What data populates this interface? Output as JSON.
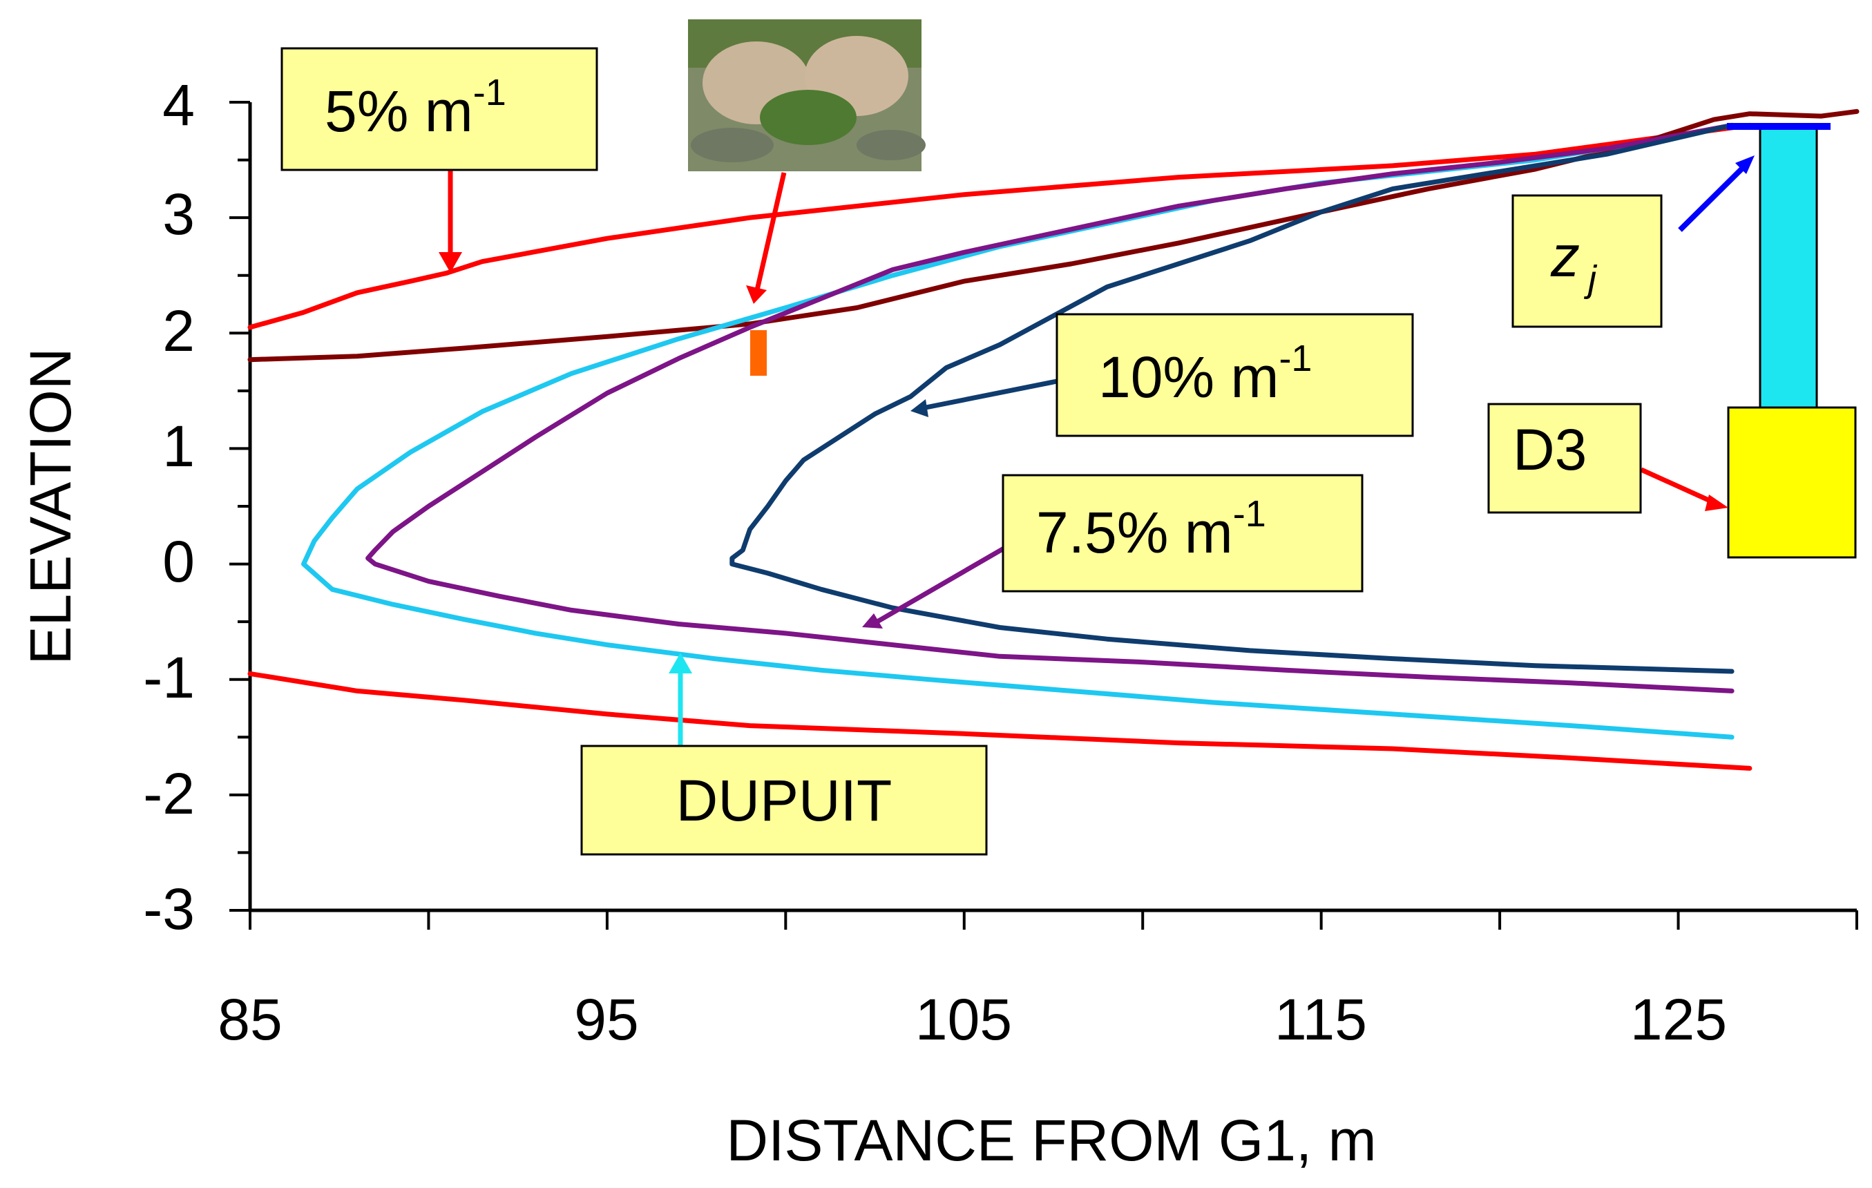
{
  "chart_data": {
    "type": "line",
    "xlabel": "DISTANCE FROM G1, m",
    "ylabel": "ELEVATION",
    "xlim": [
      85,
      130
    ],
    "ylim": [
      -3,
      4
    ],
    "x_ticks": [
      85,
      95,
      105,
      115,
      125
    ],
    "y_ticks": [
      4,
      3,
      2,
      1,
      0,
      -1,
      -2,
      -3
    ],
    "grid": false,
    "colors": {
      "red": "#ff0000",
      "dark_red": "#800000",
      "cyan": "#1ec8f0",
      "purple": "#7d1487",
      "navy": "#0f3c6e",
      "well": "#1ee6f0",
      "box": "#ffff99",
      "d3": "#ffff00",
      "water_level": "#0000ff",
      "orange": "#ff6600"
    },
    "series": [
      {
        "color_key": "red",
        "x": [
          85,
          86.5,
          88,
          89.5,
          90.5,
          91.5,
          95,
          99,
          105,
          111,
          117,
          121,
          127
        ],
        "y": [
          2.05,
          2.18,
          2.35,
          2.45,
          2.52,
          2.62,
          2.82,
          3.0,
          3.2,
          3.35,
          3.45,
          3.55,
          3.8
        ]
      },
      {
        "color_key": "red",
        "x": [
          85,
          88,
          91,
          95,
          99,
          105,
          111,
          117,
          122,
          127
        ],
        "y": [
          -0.95,
          -1.1,
          -1.18,
          -1.3,
          -1.4,
          -1.47,
          -1.55,
          -1.6,
          -1.68,
          -1.77
        ]
      },
      {
        "color_key": "dark_red",
        "x": [
          85,
          88,
          91,
          95,
          99,
          102,
          105,
          108,
          111,
          115,
          118,
          121,
          124,
          126,
          127,
          129,
          130
        ],
        "y": [
          1.77,
          1.8,
          1.87,
          1.97,
          2.08,
          2.22,
          2.45,
          2.6,
          2.78,
          3.05,
          3.25,
          3.42,
          3.65,
          3.85,
          3.9,
          3.88,
          3.92
        ]
      },
      {
        "color_key": "cyan",
        "x": [
          126.5,
          124,
          121,
          118,
          115,
          112,
          109,
          106,
          103,
          100,
          97,
          94,
          91.5,
          89.5,
          88,
          87.3,
          86.8,
          86.5,
          87.3,
          89,
          91,
          93,
          95,
          98,
          101,
          104,
          108,
          112,
          117,
          122,
          126.5
        ],
        "y": [
          3.8,
          3.65,
          3.5,
          3.4,
          3.3,
          3.15,
          2.95,
          2.75,
          2.5,
          2.22,
          1.95,
          1.65,
          1.32,
          0.97,
          0.65,
          0.4,
          0.2,
          0.0,
          -0.22,
          -0.35,
          -0.48,
          -0.6,
          -0.7,
          -0.82,
          -0.92,
          -1.0,
          -1.1,
          -1.2,
          -1.3,
          -1.4,
          -1.5
        ]
      },
      {
        "color_key": "purple",
        "x": [
          126.5,
          123,
          120,
          117,
          114,
          111,
          108,
          105,
          103,
          101,
          99,
          97,
          95,
          93,
          91.5,
          90,
          89,
          88.5,
          88.3,
          88.5,
          90,
          92,
          94,
          97,
          100,
          103,
          106,
          110,
          114,
          118,
          122,
          126.5
        ],
        "y": [
          3.8,
          3.6,
          3.48,
          3.38,
          3.25,
          3.1,
          2.9,
          2.7,
          2.55,
          2.3,
          2.05,
          1.78,
          1.48,
          1.1,
          0.8,
          0.5,
          0.28,
          0.12,
          0.05,
          0.0,
          -0.15,
          -0.28,
          -0.4,
          -0.52,
          -0.6,
          -0.7,
          -0.8,
          -0.85,
          -0.92,
          -0.98,
          -1.03,
          -1.1
        ]
      },
      {
        "color_key": "navy",
        "x": [
          126.5,
          123,
          120,
          117,
          115,
          113,
          111,
          109,
          107.5,
          106,
          104.5,
          103.5,
          102.5,
          101.5,
          100.5,
          100,
          99.5,
          99,
          98.8,
          98.5,
          98.5,
          99.5,
          101,
          103,
          106,
          109,
          113,
          117,
          121,
          126.5
        ],
        "y": [
          3.8,
          3.55,
          3.4,
          3.25,
          3.05,
          2.8,
          2.6,
          2.4,
          2.15,
          1.9,
          1.7,
          1.45,
          1.3,
          1.1,
          0.9,
          0.72,
          0.5,
          0.3,
          0.12,
          0.05,
          0.0,
          -0.08,
          -0.22,
          -0.38,
          -0.55,
          -0.65,
          -0.75,
          -0.82,
          -0.88,
          -0.93
        ]
      }
    ],
    "annotations": {
      "label_5pct": "5% m",
      "label_10pct": "10% m",
      "label_75pct": "7.5% m",
      "superscript": "-1",
      "label_dupuit": "DUPUIT",
      "label_zj": "z",
      "label_zj_sub": "j",
      "label_d3": "D3"
    }
  }
}
